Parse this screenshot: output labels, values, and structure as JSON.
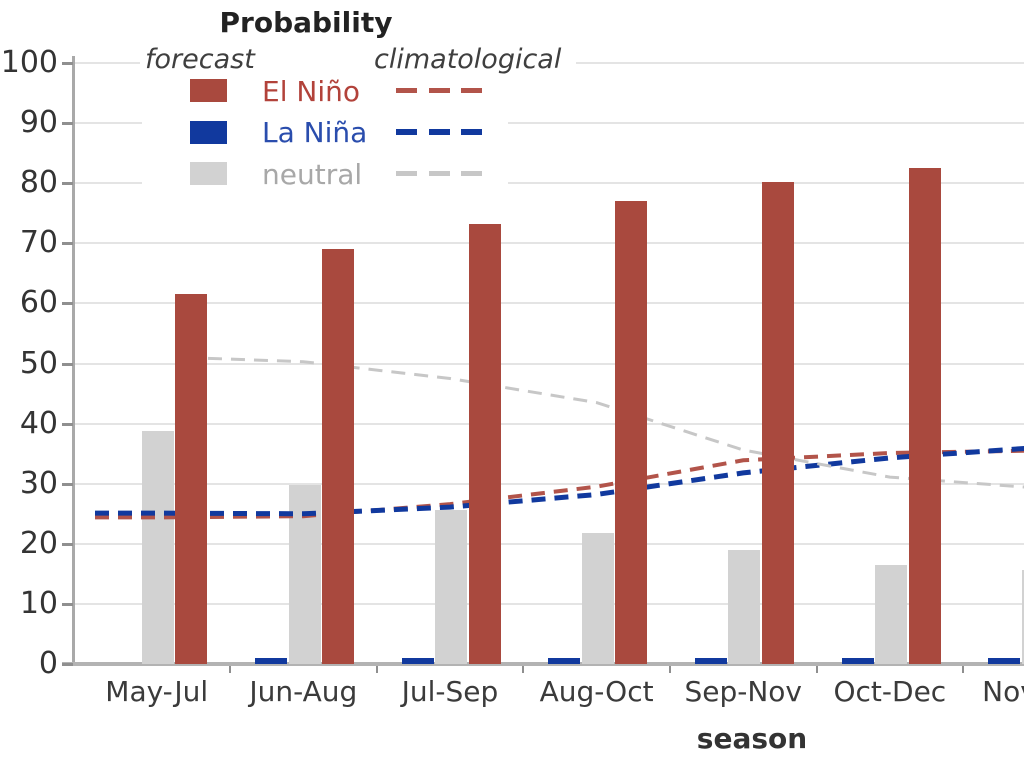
{
  "legend": {
    "title": "Probability",
    "columns": {
      "forecast": "forecast",
      "climatological": "climatological"
    },
    "rows": [
      {
        "key": "el-nino",
        "label": "El Niño",
        "bar_color": "#a9493e",
        "text_color": "#b2423a",
        "dash_color": "#b2544a"
      },
      {
        "key": "la-nina",
        "label": "La Niña",
        "bar_color": "#11399e",
        "text_color": "#2a4dad",
        "dash_color": "#11399e"
      },
      {
        "key": "neutral",
        "label": "neutral",
        "bar_color": "#d2d2d2",
        "text_color": "#a8a8a8",
        "dash_color": "#c7c7c7"
      }
    ]
  },
  "axes": {
    "x_label": "season",
    "y_ticks": [
      0,
      10,
      20,
      30,
      40,
      50,
      60,
      70,
      80,
      90,
      100
    ],
    "x_tick_labels": [
      "May-Jul",
      "Jun-Aug",
      "Jul-Sep",
      "Aug-Oct",
      "Sep-Nov",
      "Oct-Dec",
      "Nov-Jan"
    ]
  },
  "chart_data": {
    "type": "bar",
    "title": "Probability",
    "xlabel": "season",
    "ylabel": "",
    "ylim": [
      0,
      100
    ],
    "ytick_step": 10,
    "grid": true,
    "legend_position": "top-left",
    "note": "chart clipped at right edge; Nov-Jan group only partially visible",
    "categories": [
      "May-Jul",
      "Jun-Aug",
      "Jul-Sep",
      "Aug-Oct",
      "Sep-Nov",
      "Oct-Dec",
      "Nov-Jan"
    ],
    "series": [
      {
        "name": "El Niño forecast",
        "key": "el-nino",
        "type": "bar",
        "color": "#a9493e",
        "values": [
          61.5,
          69,
          73.2,
          77,
          80.2,
          82.5,
          null
        ]
      },
      {
        "name": "La Niña forecast",
        "key": "la-nina",
        "type": "bar",
        "color": "#11399e",
        "values": [
          0,
          1,
          1,
          1,
          1,
          1,
          1
        ]
      },
      {
        "name": "neutral forecast",
        "key": "neutral",
        "type": "bar",
        "color": "#d2d2d2",
        "values": [
          38.7,
          29.8,
          25.6,
          21.8,
          19,
          16.5,
          15.6
        ]
      },
      {
        "name": "El Niño climatological",
        "key": "el-nino",
        "type": "dashed_line",
        "color": "#b2544a",
        "values": [
          24.4,
          24.6,
          26.6,
          29.5,
          33.9,
          35.1,
          35.5
        ]
      },
      {
        "name": "La Niña climatological",
        "key": "la-nina",
        "type": "dashed_line",
        "color": "#11399e",
        "values": [
          25.1,
          25,
          26.1,
          28.2,
          31.8,
          34.3,
          36
        ]
      },
      {
        "name": "neutral climatological",
        "key": "neutral",
        "type": "dashed_line",
        "color": "#c7c7c7",
        "values": [
          51,
          50.3,
          47.5,
          43.5,
          35.6,
          31.1,
          29.3
        ]
      }
    ]
  }
}
